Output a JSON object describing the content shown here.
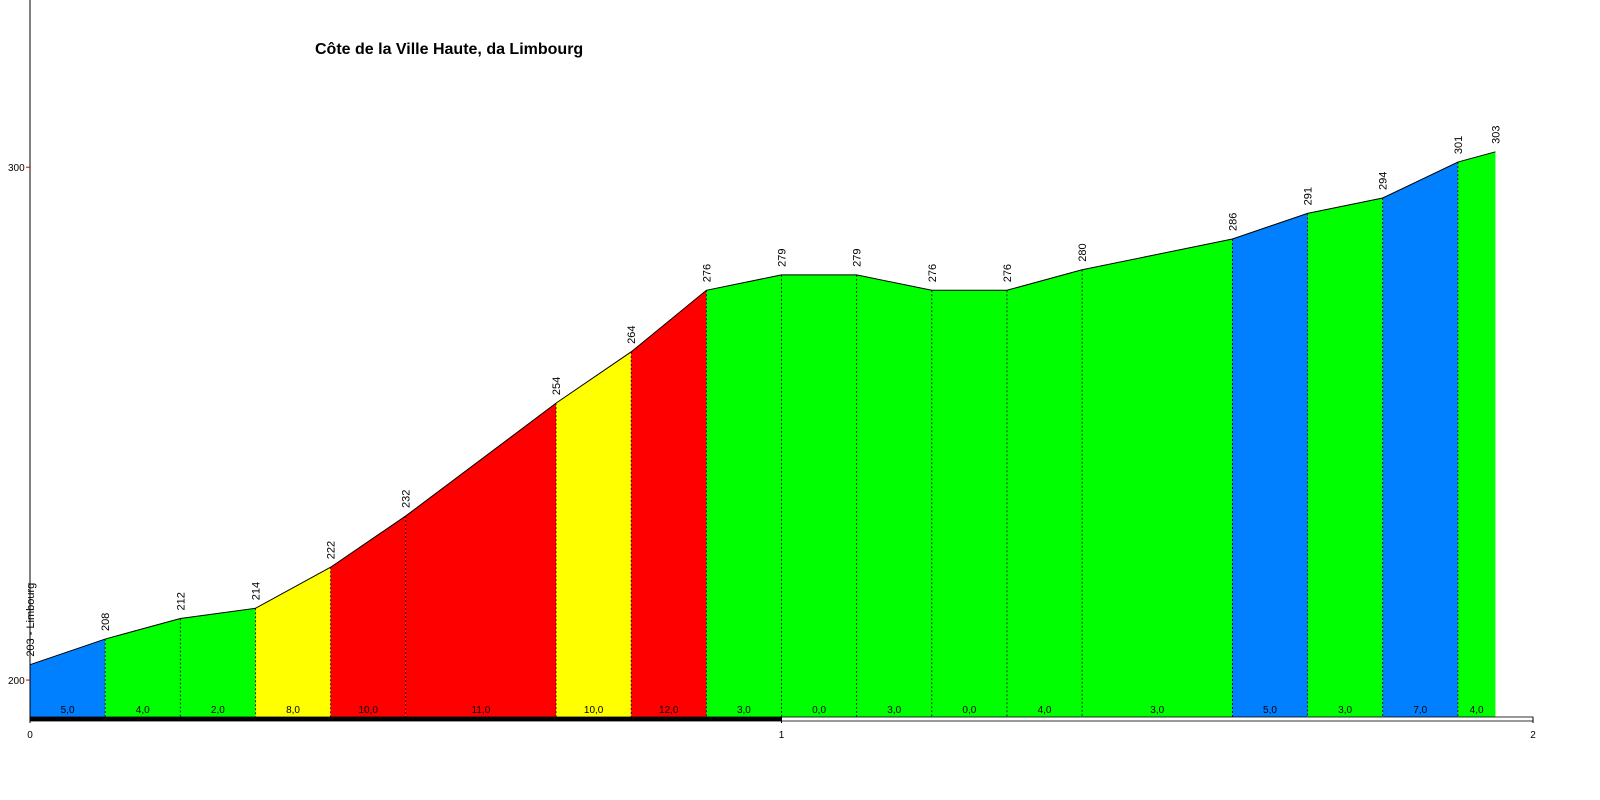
{
  "chart_data": {
    "type": "profile",
    "title": "Côte de la Ville Haute, da Limbourg",
    "x": [
      0,
      0.1,
      0.2,
      0.3,
      0.4,
      0.5,
      0.7,
      0.8,
      0.9,
      1.0,
      1.1,
      1.2,
      1.3,
      1.4,
      1.6,
      1.7,
      1.8,
      1.9,
      1.95
    ],
    "values": [
      203,
      208,
      212,
      214,
      222,
      232,
      254,
      264,
      276,
      279,
      279,
      276,
      276,
      280,
      286,
      291,
      294,
      301,
      303
    ],
    "value_labels": [
      "203 - Limbourg",
      "208",
      "212",
      "214",
      "222",
      "232",
      "254",
      "264",
      "276",
      "279",
      "279",
      "276",
      "276",
      "280",
      "286",
      "291",
      "294",
      "301",
      "303"
    ],
    "segment_gradients": [
      5.0,
      4.0,
      2.0,
      8.0,
      10.0,
      11.0,
      10.0,
      12.0,
      3.0,
      0.0,
      3.0,
      0.0,
      4.0,
      3.0,
      5.0,
      3.0,
      7.0,
      4.0
    ],
    "segment_gradient_labels": [
      "5,0",
      "4,0",
      "2,0",
      "8,0",
      "10,0",
      "11,0",
      "10,0",
      "12,0",
      "3,0",
      "0,0",
      "3,0",
      "0,0",
      "4,0",
      "3,0",
      "5,0",
      "3,0",
      "7,0",
      "4,0"
    ],
    "segment_colors": [
      "#0080ff",
      "#00ff00",
      "#00ff00",
      "#ffff00",
      "#ff0000",
      "#ff0000",
      "#ffff00",
      "#ff0000",
      "#00ff00",
      "#00ff00",
      "#00ff00",
      "#00ff00",
      "#00ff00",
      "#00ff00",
      "#0080ff",
      "#00ff00",
      "#0080ff",
      "#00ff00"
    ],
    "xlim": [
      0,
      2
    ],
    "xticks": [
      0,
      1,
      2
    ],
    "ylim": [
      192.8,
      332.6
    ],
    "yticks": [
      200,
      300
    ]
  }
}
